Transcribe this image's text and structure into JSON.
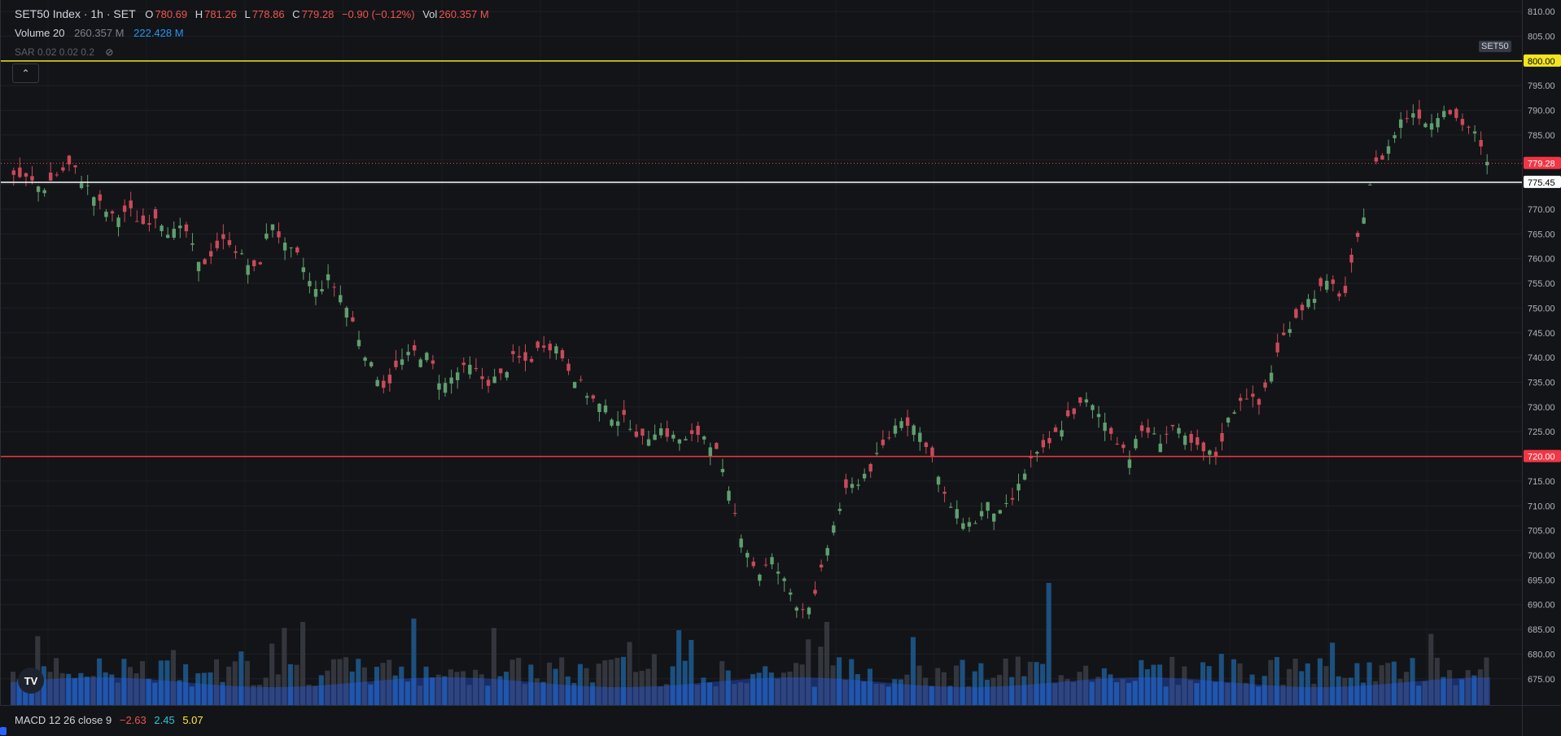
{
  "header": {
    "symbol": "SET50 Index · 1h · SET",
    "open_label": "O",
    "open": "780.69",
    "high_label": "H",
    "high": "781.26",
    "low_label": "L",
    "low": "778.86",
    "close_label": "C",
    "close": "779.28",
    "change": "−0.90 (−0.12%)",
    "vol_label": "Vol",
    "vol": "260.357 M"
  },
  "volume_legend": {
    "label": "Volume 20",
    "value1": "260.357 M",
    "value2": "222.428 M"
  },
  "sar_legend": {
    "label": "SAR 0.02 0.02 0.2"
  },
  "symbol_badge": "SET50",
  "macd_legend": {
    "label": "MACD 12 26 close 9",
    "v1": "−2.63",
    "v2": "2.45",
    "v3": "5.07"
  },
  "logo_text": "TV",
  "collapse_glyph": "⌃",
  "colors": {
    "up": "#26a69a",
    "down": "#ef5350",
    "candle_up": "#5f9f6f",
    "candle_down": "#c94a5a",
    "yellow_line": "#f2e51e",
    "red_line": "#f23645",
    "white_line": "#ffffff",
    "volume": "#2962ff"
  },
  "chart_data": {
    "type": "candlestick",
    "title": "SET50 Index · 1h · SET",
    "ylim": [
      672,
      812
    ],
    "y_ticks": [
      675,
      680,
      685,
      690,
      695,
      700,
      705,
      710,
      715,
      720,
      725,
      730,
      735,
      740,
      745,
      750,
      755,
      760,
      765,
      770,
      775,
      780,
      785,
      790,
      795,
      800,
      805,
      810
    ],
    "y_tick_labels": [
      "675.00",
      "680.00",
      "685.00",
      "690.00",
      "695.00",
      "700.00",
      "705.00",
      "710.00",
      "715.00",
      "720.00",
      "725.00",
      "730.00",
      "735.00",
      "740.00",
      "745.00",
      "750.00",
      "755.00",
      "760.00",
      "765.00",
      "770.00",
      "775.00",
      "780.00",
      "785.00",
      "790.00",
      "795.00",
      "800.00",
      "805.00",
      "810.00"
    ],
    "horizontal_lines": [
      {
        "price": 800.0,
        "label": "800.00",
        "color": "#f2e51e"
      },
      {
        "price": 775.45,
        "label": "775.45",
        "color": "#ffffff"
      },
      {
        "price": 720.0,
        "label": "720.00",
        "color": "#f23645"
      }
    ],
    "last_price": {
      "price": 779.28,
      "label": "779.28"
    },
    "close_path": [
      777,
      776,
      774,
      777,
      779,
      775,
      771,
      768,
      770,
      767,
      769,
      765,
      766,
      758,
      762,
      764,
      760,
      757,
      768,
      762,
      760,
      753,
      756,
      752,
      745,
      738,
      734,
      739,
      741,
      740,
      734,
      737,
      738,
      735,
      736,
      740,
      739,
      743,
      742,
      737,
      733,
      730,
      728,
      727,
      723,
      726,
      724,
      723,
      725,
      722,
      712,
      703,
      696,
      699,
      694,
      689,
      691,
      703,
      712,
      715,
      718,
      723,
      728,
      726,
      722,
      712,
      708,
      706,
      710,
      708,
      712,
      719,
      721,
      725,
      729,
      731,
      728,
      724,
      720,
      726,
      723,
      726,
      723,
      721,
      720,
      728,
      733,
      730,
      738,
      746,
      750,
      753,
      755,
      752,
      764,
      778,
      782,
      788,
      790,
      787,
      791,
      788,
      786,
      779
    ],
    "candle_count": 240,
    "volume_max_relative": 1.0
  }
}
